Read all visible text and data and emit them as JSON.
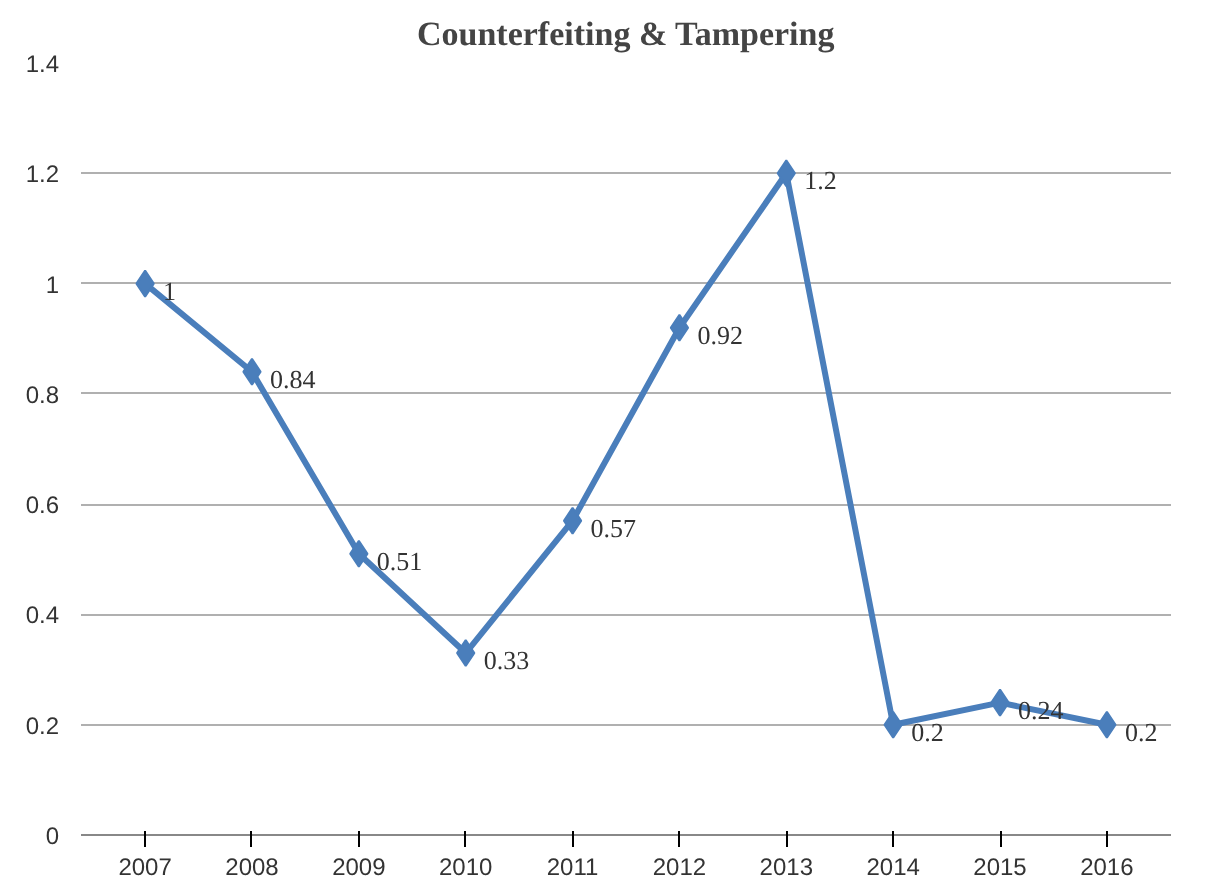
{
  "chart_data": {
    "type": "line",
    "title": "Counterfeiting & Tampering",
    "categories": [
      "2007",
      "2008",
      "2009",
      "2010",
      "2011",
      "2012",
      "2013",
      "2014",
      "2015",
      "2016"
    ],
    "values": [
      1,
      0.84,
      0.51,
      0.33,
      0.57,
      0.92,
      1.2,
      0.2,
      0.24,
      0.2
    ],
    "color": "#4a7ebb",
    "marker": "diamond",
    "line_style": "solid",
    "ylim": [
      0,
      1.4
    ],
    "yticks": [
      0,
      0.2,
      0.4,
      0.6,
      0.8,
      1,
      1.2,
      1.4
    ],
    "grid": "y",
    "data_labels": true
  }
}
